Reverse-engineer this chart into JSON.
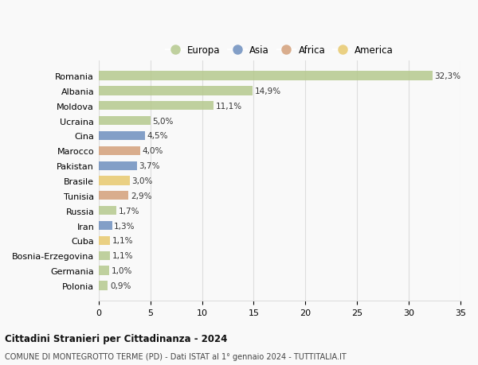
{
  "countries": [
    "Romania",
    "Albania",
    "Moldova",
    "Ucraina",
    "Cina",
    "Marocco",
    "Pakistan",
    "Brasile",
    "Tunisia",
    "Russia",
    "Iran",
    "Cuba",
    "Bosnia-Erzegovina",
    "Germania",
    "Polonia"
  ],
  "values": [
    32.3,
    14.9,
    11.1,
    5.0,
    4.5,
    4.0,
    3.7,
    3.0,
    2.9,
    1.7,
    1.3,
    1.1,
    1.1,
    1.0,
    0.9
  ],
  "labels": [
    "32,3%",
    "14,9%",
    "11,1%",
    "5,0%",
    "4,5%",
    "4,0%",
    "3,7%",
    "3,0%",
    "2,9%",
    "1,7%",
    "1,3%",
    "1,1%",
    "1,1%",
    "1,0%",
    "0,9%"
  ],
  "continents": [
    "Europa",
    "Europa",
    "Europa",
    "Europa",
    "Asia",
    "Africa",
    "Asia",
    "America",
    "Africa",
    "Europa",
    "Asia",
    "America",
    "Europa",
    "Europa",
    "Europa"
  ],
  "colors": {
    "Europa": "#b5c98e",
    "Asia": "#6e8fbf",
    "Africa": "#d4a07a",
    "America": "#e8c96e"
  },
  "title1": "Cittadini Stranieri per Cittadinanza - 2024",
  "title2": "COMUNE DI MONTEGROTTO TERME (PD) - Dati ISTAT al 1° gennaio 2024 - TUTTITALIA.IT",
  "xlim": [
    0,
    35
  ],
  "xticks": [
    0,
    5,
    10,
    15,
    20,
    25,
    30,
    35
  ],
  "background_color": "#f9f9f9",
  "grid_color": "#dddddd",
  "bar_alpha": 0.85,
  "legend_order": [
    "Europa",
    "Asia",
    "Africa",
    "America"
  ]
}
